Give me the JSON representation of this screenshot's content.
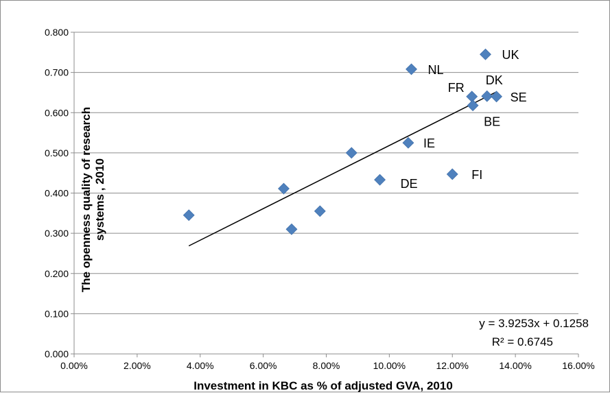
{
  "chart_data": {
    "type": "scatter",
    "title": "",
    "xlabel": "Investment in KBC as % of adjusted GVA, 2010",
    "ylabel_lines": [
      "The openness quality of research",
      "systems , 2010"
    ],
    "xlim": [
      0,
      0.16
    ],
    "ylim": [
      0,
      0.8
    ],
    "x_ticks": [
      "0.00%",
      "2.00%",
      "4.00%",
      "6.00%",
      "8.00%",
      "10.00%",
      "12.00%",
      "14.00%",
      "16.00%"
    ],
    "y_ticks": [
      "0.000",
      "0.100",
      "0.200",
      "0.300",
      "0.400",
      "0.500",
      "0.600",
      "0.700",
      "0.800"
    ],
    "grid": "horizontal",
    "marker_color": "#4f81bd",
    "points": [
      {
        "x": 0.0364,
        "y": 0.345,
        "label": ""
      },
      {
        "x": 0.0665,
        "y": 0.411,
        "label": ""
      },
      {
        "x": 0.069,
        "y": 0.31,
        "label": ""
      },
      {
        "x": 0.078,
        "y": 0.355,
        "label": ""
      },
      {
        "x": 0.088,
        "y": 0.5,
        "label": ""
      },
      {
        "x": 0.097,
        "y": 0.433,
        "label": "DE"
      },
      {
        "x": 0.106,
        "y": 0.525,
        "label": "IE"
      },
      {
        "x": 0.107,
        "y": 0.708,
        "label": "NL"
      },
      {
        "x": 0.12,
        "y": 0.447,
        "label": "FI"
      },
      {
        "x": 0.1262,
        "y": 0.64,
        "label": "FR"
      },
      {
        "x": 0.1265,
        "y": 0.618,
        "label": "BE"
      },
      {
        "x": 0.131,
        "y": 0.641,
        "label": "DK"
      },
      {
        "x": 0.1305,
        "y": 0.745,
        "label": "UK"
      },
      {
        "x": 0.134,
        "y": 0.64,
        "label": "SE"
      }
    ],
    "trendline": {
      "slope": 3.9253,
      "intercept": 0.1258,
      "x_range": [
        0.0364,
        0.134
      ],
      "equation": "y = 3.9253x + 0.1258",
      "r_squared": "R² = 0.6745"
    }
  }
}
